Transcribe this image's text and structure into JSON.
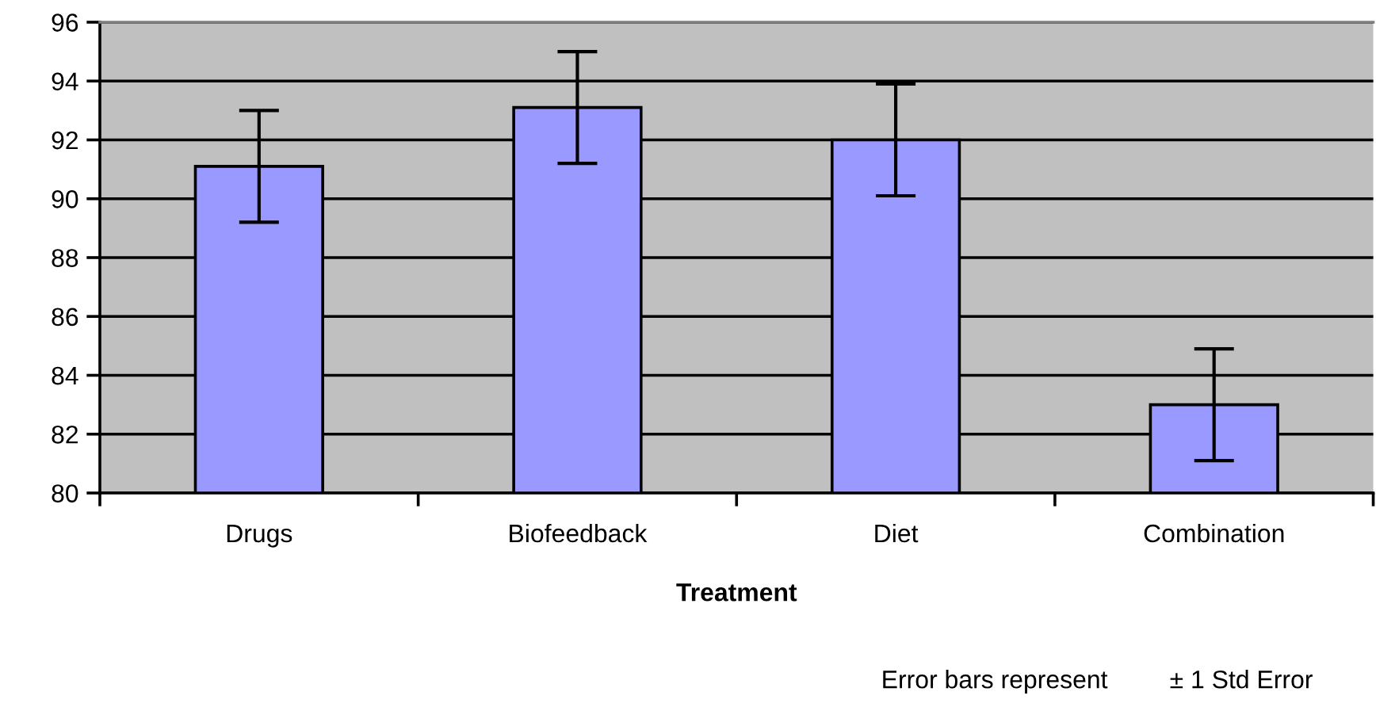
{
  "chart_data": {
    "type": "bar",
    "xlabel": "Treatment",
    "categories": [
      "Drugs",
      "Biofeedback",
      "Diet",
      "Combination"
    ],
    "values": [
      91.1,
      93.1,
      92.0,
      83.0
    ],
    "errors": [
      1.9,
      1.9,
      1.9,
      1.9
    ],
    "color": "#9999ff",
    "ylim": [
      80,
      96
    ],
    "yticks": [
      80,
      82,
      84,
      86,
      88,
      90,
      92,
      94,
      96
    ],
    "grid": "y",
    "annotations": [
      "Error bars represent",
      "± 1 Std Error"
    ]
  }
}
